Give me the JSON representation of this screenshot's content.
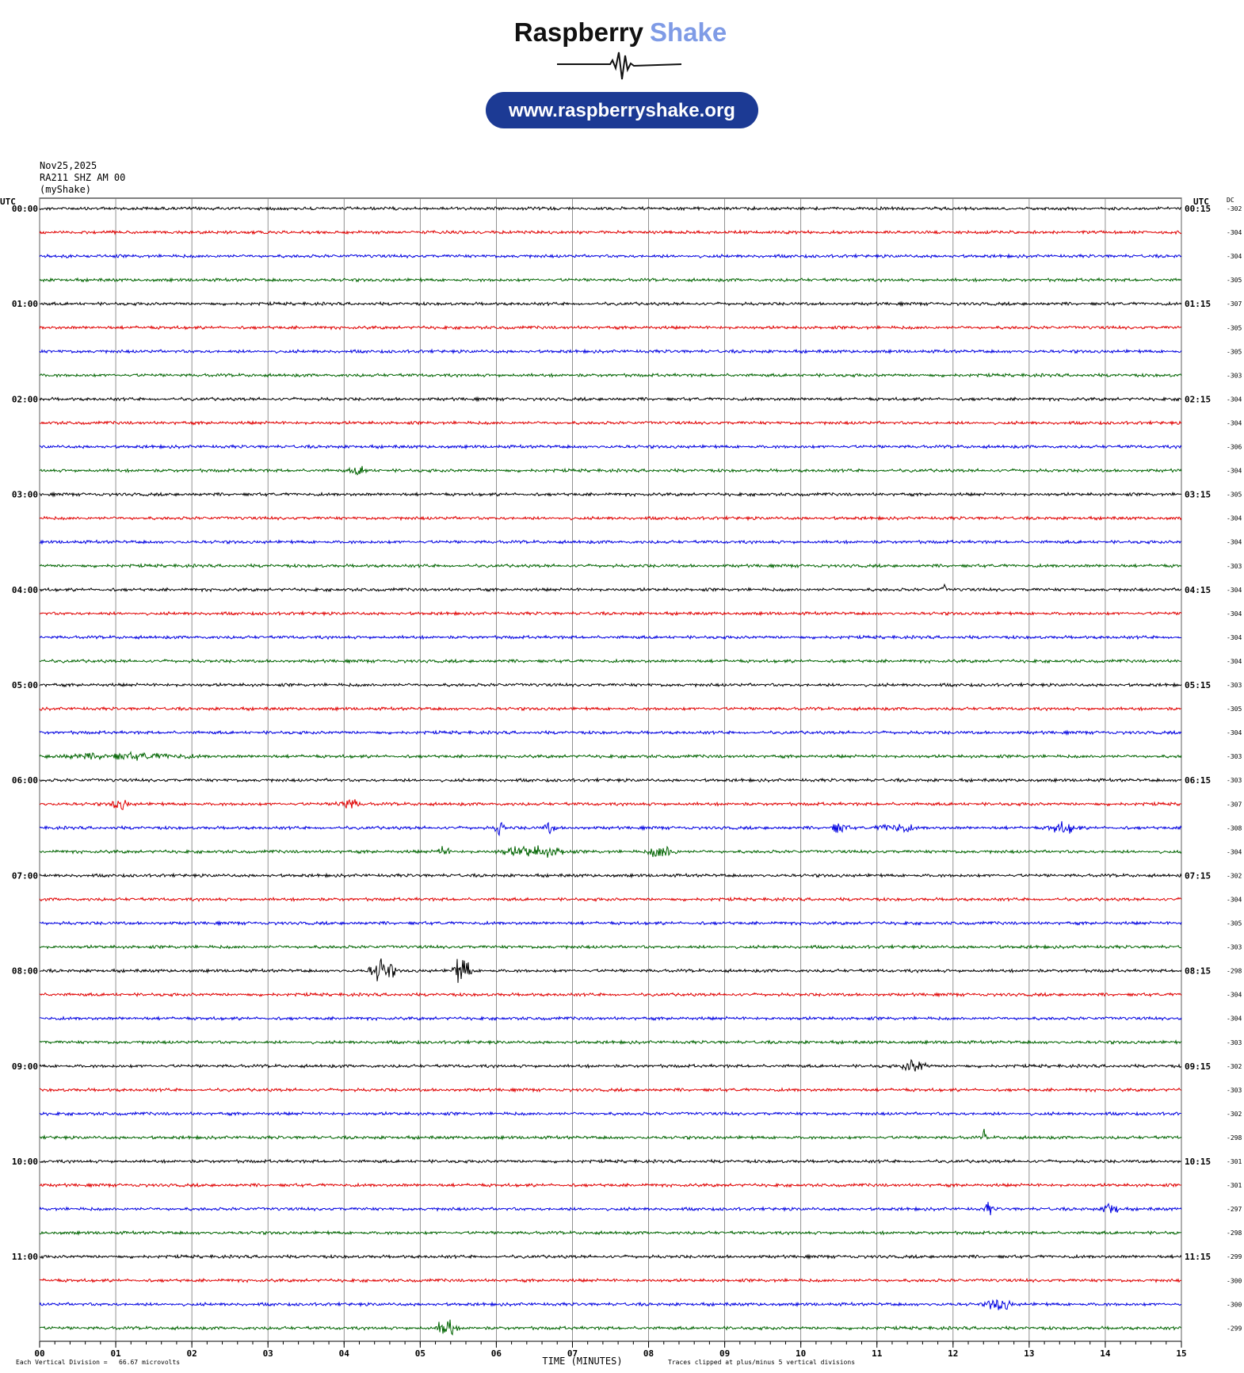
{
  "logo": {
    "name_1": "Raspberry",
    "name_2": "Shake",
    "url": "www.raspberryshake.org"
  },
  "chart_data": {
    "type": "helicorder",
    "date": "Nov25,2025",
    "station": "RA211 SHZ AM 00",
    "source": "(myShake)",
    "time_zone_label": "UTC",
    "dc_label": "DC",
    "row_labels_left": [
      "00:00",
      "01:00",
      "02:00",
      "03:00",
      "04:00",
      "05:00",
      "06:00",
      "07:00",
      "08:00",
      "09:00",
      "10:00",
      "11:00"
    ],
    "row_labels_right": [
      "00:15",
      "01:15",
      "02:15",
      "03:15",
      "04:15",
      "05:15",
      "06:15",
      "07:15",
      "08:15",
      "09:15",
      "10:15",
      "11:15"
    ],
    "dc_values": [
      -302,
      -304,
      -304,
      -305,
      -307,
      -305,
      -305,
      -303,
      -304,
      -304,
      -306,
      -304,
      -305,
      -304,
      -304,
      -303,
      -304,
      -304,
      -304,
      -304,
      -303,
      -305,
      -304,
      -303,
      -303,
      -307,
      -308,
      -304,
      -302,
      -304,
      -305,
      -303,
      -298,
      -304,
      -304,
      -303,
      -302,
      -303,
      -302,
      -298,
      -301,
      -301,
      -297,
      -298,
      -299,
      -300,
      -300,
      -299
    ],
    "trace_colors": [
      "#000000",
      "#e00000",
      "#0000e0",
      "#006400"
    ],
    "xlim": [
      0,
      15
    ],
    "xticks": [
      {
        "value": 0,
        "label": "00"
      },
      {
        "value": 1,
        "label": "01"
      },
      {
        "value": 2,
        "label": "02"
      },
      {
        "value": 3,
        "label": "03"
      },
      {
        "value": 4,
        "label": "04"
      },
      {
        "value": 5,
        "label": "05"
      },
      {
        "value": 6,
        "label": "06"
      },
      {
        "value": 7,
        "label": "07"
      },
      {
        "value": 8,
        "label": "08"
      },
      {
        "value": 9,
        "label": "09"
      },
      {
        "value": 10,
        "label": "10"
      },
      {
        "value": 11,
        "label": "11"
      },
      {
        "value": 12,
        "label": "12"
      },
      {
        "value": 13,
        "label": "13"
      },
      {
        "value": 14,
        "label": "14"
      },
      {
        "value": 15,
        "label": "15"
      }
    ],
    "xlabel": "TIME (MINUTES)",
    "scale_note": "Each Vertical Division =   66.67 microvolts",
    "clip_note": "Traces clipped at plus/minus 5 vertical divisions",
    "grid": true
  }
}
